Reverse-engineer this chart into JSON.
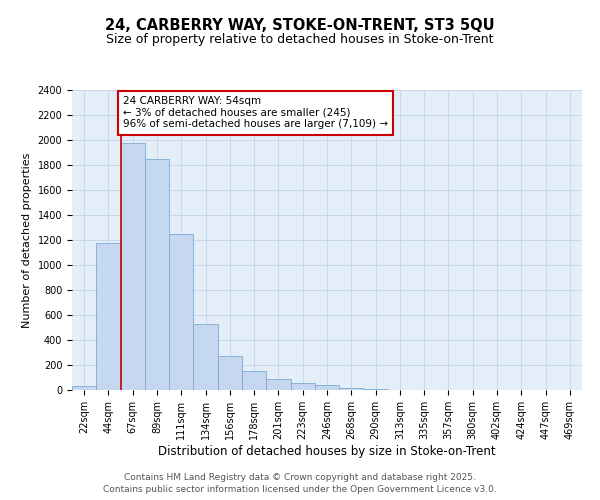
{
  "title1": "24, CARBERRY WAY, STOKE-ON-TRENT, ST3 5QU",
  "title2": "Size of property relative to detached houses in Stoke-on-Trent",
  "xlabel": "Distribution of detached houses by size in Stoke-on-Trent",
  "ylabel": "Number of detached properties",
  "categories": [
    "22sqm",
    "44sqm",
    "67sqm",
    "89sqm",
    "111sqm",
    "134sqm",
    "156sqm",
    "178sqm",
    "201sqm",
    "223sqm",
    "246sqm",
    "268sqm",
    "290sqm",
    "313sqm",
    "335sqm",
    "357sqm",
    "380sqm",
    "402sqm",
    "424sqm",
    "447sqm",
    "469sqm"
  ],
  "values": [
    30,
    1175,
    1975,
    1850,
    1250,
    525,
    275,
    150,
    90,
    55,
    40,
    15,
    5,
    3,
    2,
    2,
    1,
    1,
    1,
    1,
    1
  ],
  "bar_color": "#C5D8F0",
  "bar_edge_color": "#7BAAD4",
  "vline_x": 1.5,
  "vline_color": "#CC0000",
  "annotation_text": "24 CARBERRY WAY: 54sqm\n← 3% of detached houses are smaller (245)\n96% of semi-detached houses are larger (7,109) →",
  "annotation_box_color": "#CC0000",
  "ylim": [
    0,
    2400
  ],
  "yticks": [
    0,
    200,
    400,
    600,
    800,
    1000,
    1200,
    1400,
    1600,
    1800,
    2000,
    2200,
    2400
  ],
  "grid_color": "#C8D8EC",
  "bg_color": "#E4EEF8",
  "footer1": "Contains HM Land Registry data © Crown copyright and database right 2025.",
  "footer2": "Contains public sector information licensed under the Open Government Licence v3.0.",
  "title1_fontsize": 10.5,
  "title2_fontsize": 9,
  "xlabel_fontsize": 8.5,
  "ylabel_fontsize": 8,
  "tick_fontsize": 7,
  "annotation_fontsize": 7.5,
  "footer_fontsize": 6.5
}
